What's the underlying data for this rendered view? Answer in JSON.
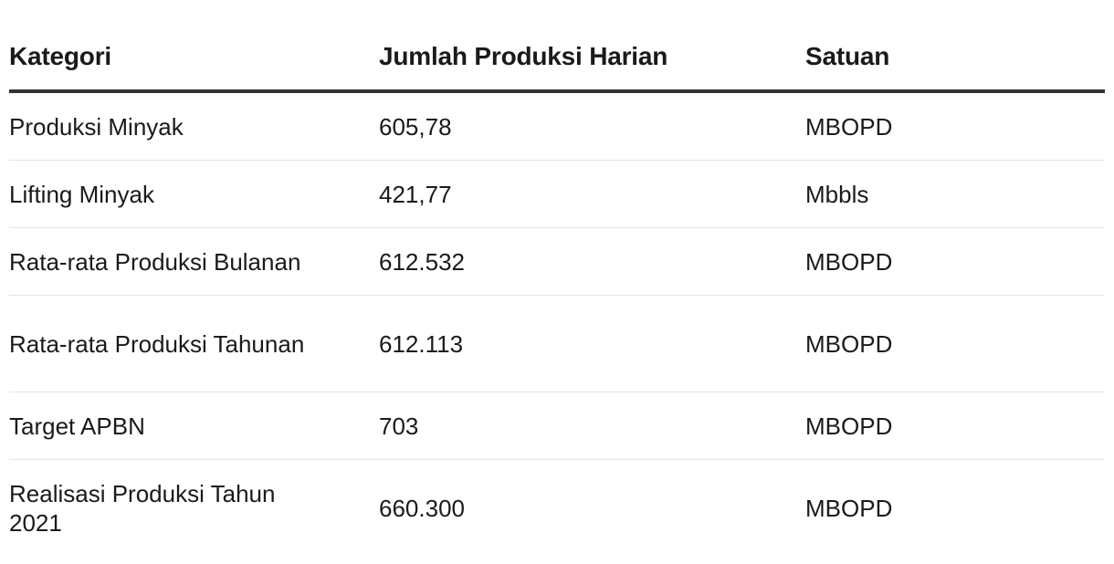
{
  "table": {
    "headers": [
      "Kategori",
      "Jumlah Produksi Harian",
      "Satuan"
    ],
    "rows": [
      {
        "kategori": "Produksi Minyak",
        "jumlah": "605,78",
        "satuan": "MBOPD"
      },
      {
        "kategori": "Lifting Minyak",
        "jumlah": "421,77",
        "satuan": "Mbbls"
      },
      {
        "kategori": "Rata-rata Produksi Bulanan",
        "jumlah": "612.532",
        "satuan": "MBOPD"
      },
      {
        "kategori": "Rata-rata Produksi Tahunan",
        "jumlah": "612.113",
        "satuan": "MBOPD"
      },
      {
        "kategori": "Target APBN",
        "jumlah": "703",
        "satuan": "MBOPD"
      },
      {
        "kategori": "Realisasi Produksi Tahun 2021",
        "jumlah": "660.300",
        "satuan": "MBOPD"
      }
    ]
  }
}
